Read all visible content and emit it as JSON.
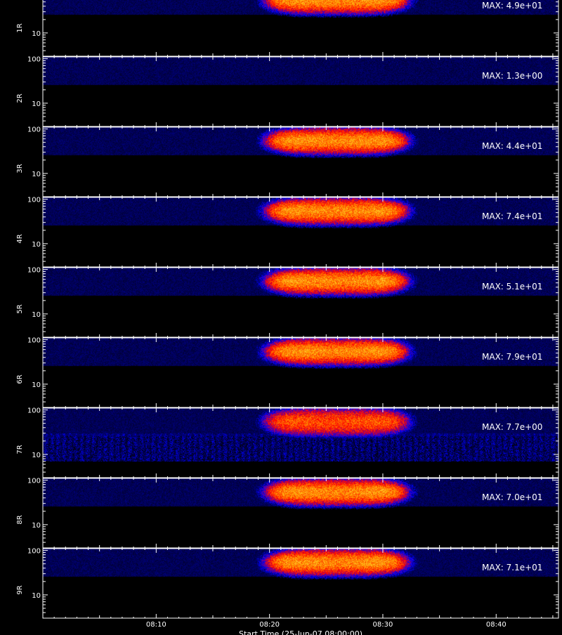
{
  "chart_data": {
    "type": "heatmap",
    "x_tick_labels": [
      "08:10",
      "08:20",
      "08:30",
      "08:40"
    ],
    "x_axis_title": "Start Time (25-Jun-07 08:00:00)",
    "y_scale": "log",
    "y_tick_labels": [
      "100",
      "10"
    ],
    "x_range_minutes": [
      0.0,
      45.5
    ],
    "y_range": [
      3,
      110
    ],
    "colormap": [
      "#000000",
      "#0000ff",
      "#ff0000",
      "#ffa500",
      "#ffff80"
    ],
    "panels": [
      {
        "label": "1R",
        "max_label": "MAX: 4.9e+01",
        "max": 49.0,
        "has_emission": true,
        "noise": 0.18
      },
      {
        "label": "2R",
        "max_label": "MAX: 1.3e+00",
        "max": 1.3,
        "has_emission": false,
        "noise": 0.0
      },
      {
        "label": "3R",
        "max_label": "MAX: 4.4e+01",
        "max": 44.0,
        "has_emission": true,
        "noise": 0.18
      },
      {
        "label": "4R",
        "max_label": "MAX: 7.4e+01",
        "max": 74.0,
        "has_emission": true,
        "noise": 0.18
      },
      {
        "label": "5R",
        "max_label": "MAX: 5.1e+01",
        "max": 51.0,
        "has_emission": true,
        "noise": 0.18
      },
      {
        "label": "6R",
        "max_label": "MAX: 7.9e+01",
        "max": 79.0,
        "has_emission": true,
        "noise": 0.18
      },
      {
        "label": "7R",
        "max_label": "MAX: 7.7e+00",
        "max": 7.7,
        "has_emission": true,
        "noise": 0.55
      },
      {
        "label": "8R",
        "max_label": "MAX: 7.0e+01",
        "max": 70.0,
        "has_emission": true,
        "noise": 0.18
      },
      {
        "label": "9R",
        "max_label": "MAX: 7.1e+01",
        "max": 71.0,
        "has_emission": true,
        "noise": 0.18
      }
    ],
    "emission_band": {
      "time_start_min": 19.8,
      "time_end_min": 32.0,
      "y_top": 100,
      "y_bottom": 30
    }
  }
}
